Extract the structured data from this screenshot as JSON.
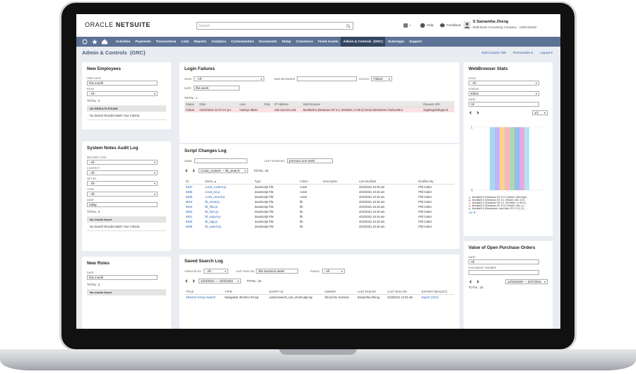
{
  "header": {
    "brand": "ORACLE",
    "product": "NETSUITE",
    "search": "Search",
    "help": "Help",
    "feedback": "Feedback",
    "user_name": "S Samantha Zheng",
    "user_role": "Multi Book Accounting Company - Administrator"
  },
  "nav": [
    "Activities",
    "Payments",
    "Transactions",
    "Lists",
    "Reports",
    "Analytics",
    "Customization",
    "Documents",
    "Setup",
    "Commerce",
    "Fixed Assets",
    "Admin & Controls  (GRC)",
    "SuiteApps",
    "Support"
  ],
  "nav_active": 11,
  "page": {
    "title": "Admin & Controls  (GRC)",
    "links": [
      "Edit Custom Tab",
      "Personalize ▾",
      "Layout ▾"
    ]
  },
  "portlets": {
    "new_employees": {
      "title": "New Employees",
      "fields": [
        {
          "label": "HIRE DATE",
          "value": "this month"
        },
        {
          "label": "ROLE",
          "value": "- All -",
          "select": true
        }
      ],
      "total": "TOTAL: 0",
      "empty": {
        "header": "NO RESULTS FOUND",
        "text": "No Search Results Match Your Criteria."
      }
    },
    "system_notes": {
      "title": "System Notes Audit Log",
      "fields": [
        {
          "label": "RECORD TYPE",
          "value": "- All -",
          "select": true
        },
        {
          "label": "CONTEXT",
          "value": "- All -",
          "select": true
        },
        {
          "label": "SET BY",
          "value": "- All -",
          "select": true
        },
        {
          "label": "TYPE",
          "value": "- All -",
          "select": true
        },
        {
          "label": "DATE",
          "value": "today"
        }
      ],
      "total": "TOTAL: 0",
      "empty": {
        "header": "No results found",
        "text": "No Search Results Match Your Criteria."
      }
    },
    "new_roles": {
      "title": "New Roles",
      "fields": [
        {
          "label": "DATE",
          "value": "this month"
        }
      ],
      "total": "TOTAL: 0",
      "empty": {
        "header": "No results found"
      }
    },
    "login_failures": {
      "title": "Login Failures",
      "fields": [
        {
          "label": "ROLE",
          "value": "- All -",
          "select": true
        },
        {
          "label": "WEB BROWSER"
        },
        {
          "label": "STATUS",
          "value": "Failure",
          "select": true
        },
        {
          "label": "DATE",
          "value": "this week"
        }
      ],
      "total": "TOTAL: 1",
      "columns": [
        "Status",
        "Date",
        "User",
        "Role",
        "IP Address",
        "Web Browser",
        "Request URI"
      ],
      "rows": [
        [
          "Failure",
          "04/24/2021 02:07:27 pm",
          "Kathryn Blaze",
          null,
          "209.116.204.126",
          "Mozilla/5.0 (Windows NT 6.1; WOW64; rv:39.0) Gecko/20100101 Firefox/39.0",
          "/app/login/nllogin.nl"
        ]
      ]
    },
    "script_changes": {
      "title": "Script Changes Log",
      "fields": [
        {
          "label": "NAME"
        },
        {
          "label": "LAST MODIFIED",
          "value": "previous one week"
        }
      ],
      "pager": {
        "select": "Const_content — lib_search",
        "total": "TOTAL: 16"
      },
      "columns": [
        "ID",
        "Name ▲",
        "Type",
        "Folder",
        "Description",
        "Last Modified",
        "Modified By"
      ],
      "link_columns": [
        0,
        1
      ],
      "rows": [
        [
          "9487",
          "const_content.js",
          "JavaScript File",
          "const",
          null,
          "4/22/2021 10:15 am",
          "Phil Cutler"
        ],
        [
          "9486",
          "const_list.js",
          "JavaScript File",
          "const",
          null,
          "4/22/2021 10:15 am",
          "Phil Cutler"
        ],
        [
          "9485",
          "const_record.js",
          "JavaScript File",
          "const",
          null,
          "4/22/2021 10:15 am",
          "Phil Cutler"
        ],
        [
          "9510",
          "lib_email.js",
          "JavaScript File",
          "lib",
          null,
          "4/22/2021 10:15 am",
          "Phil Cutler"
        ],
        [
          "9494",
          "lib_files.js",
          "JavaScript File",
          "lib",
          null,
          "4/22/2021 10:15 am",
          "Phil Cutler"
        ],
        [
          "9492",
          "lib_form.js",
          "JavaScript File",
          "lib",
          null,
          "4/22/2021 10:15 am",
          "Phil Cutler"
        ],
        [
          "9491",
          "lib_export.js",
          "JavaScript File",
          "lib",
          null,
          "4/22/2021 10:15 am",
          "Phil Cutler"
        ],
        [
          "9490",
          "lib_logs.js",
          "JavaScript File",
          "lib",
          null,
          "4/22/2021 10:15 am",
          "Phil Cutler"
        ],
        [
          "9489",
          "lib_search.js",
          "JavaScript File",
          "lib",
          null,
          "4/22/2021 10:15 am",
          "Phil Cutler"
        ]
      ]
    },
    "saved_search": {
      "title": "Saved Search Log",
      "fields": [
        {
          "label": "CREATED BY",
          "value": "- All -",
          "select": true
        },
        {
          "label": "LAST RUN ON",
          "value": "this business week"
        },
        {
          "label": "PUBLIC",
          "value": "- All -",
          "select": true
        }
      ],
      "pager": {
        "select": "4/23/2021 — 4/22/2021",
        "total": "TOTAL: 16"
      },
      "columns": [
        "TITLE",
        "TYPE",
        "SCRIPT ID",
        "OWNER",
        "LAST RUN BY",
        "LAST RUN ON",
        "EXPORT RESULTS"
      ],
      "link_columns": [
        0,
        6
      ],
      "rows": [
        [
          "Shortcut Group Search",
          "Navigation Shortcut Group",
          "customsearch_nav_shortcutgroup",
          "Sheryl De Guzman",
          "Samantha Zheng",
          "4/23/2021 12:01 am",
          "Export (CSV)"
        ]
      ]
    },
    "webbrowser_stats": {
      "title": "WebBrowser Stats",
      "fields": [
        {
          "label": "ROLE",
          "value": "- All -",
          "select": true
        },
        {
          "label": "STATUS",
          "value": "Either",
          "select": true
        },
        {
          "label": "DATE",
          "value": "All"
        }
      ],
      "pager": {
        "select": "1/1",
        "total": "TOTAL: 1/8"
      },
      "chart_data": {
        "type": "bar",
        "values": [
          1,
          1,
          1,
          1,
          1,
          1,
          1,
          1
        ],
        "colors": [
          "#a9d6f5",
          "#c9b3ef",
          "#f7d58c",
          "#f5b6c8",
          "#a8dcb0",
          "#9db9f0",
          "#e6a9e0",
          "#b8e2f2"
        ],
        "ylim": [
          0,
          1.1
        ],
        "yticks": [
          0,
          1
        ],
        "grid": true,
        "legend": [
          "Mozilla/5.0 (Windows NT 10.0; Win64; x64) Appl...",
          "Mozilla/5.0 (Windows NT 6.1; Win64; x64; rv:8...",
          "Mozilla/5.0 (Windows NT 6.1; WOW64; rv:39.0)...",
          "Mozilla/5.0 (Windows NT 10.0; Win64; x64; rv:...",
          "Mozilla/5.0 (Macintosh; Intel Mac OS X 10_15_..."
        ],
        "legend_page": "1/4 ▼"
      }
    },
    "open_po": {
      "title": "Value of Open Purchase Orders",
      "fields": [
        {
          "label": "DATE",
          "value": "All"
        },
        {
          "label": "DOCUMENT NUMBER"
        }
      ],
      "pager": {
        "select": "12/16/2020 — 2/27/2021",
        "total": "TOTAL: 15"
      }
    }
  }
}
